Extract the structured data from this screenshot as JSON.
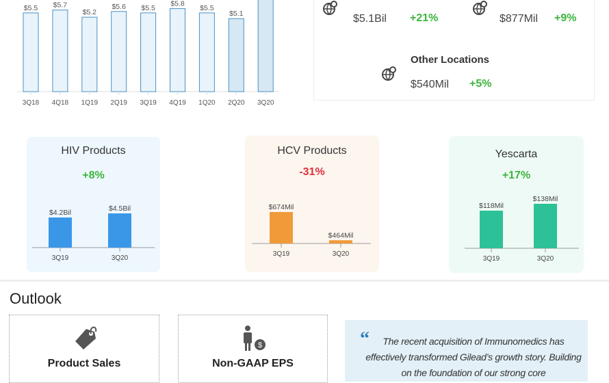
{
  "chart_data": [
    {
      "type": "bar",
      "categories": [
        "3Q18",
        "4Q18",
        "1Q19",
        "2Q19",
        "3Q19",
        "4Q19",
        "1Q20",
        "2Q20",
        "3Q20"
      ],
      "values": [
        5.5,
        5.7,
        5.2,
        5.6,
        5.5,
        5.8,
        5.5,
        5.1,
        null
      ],
      "labels": [
        "$5.5",
        "$5.7",
        "$5.2",
        "$5.6",
        "$5.5",
        "$5.8",
        "$5.5",
        "$5.1",
        ""
      ],
      "ylim": [
        0,
        6.4
      ],
      "colors": {
        "fill": "#e8f3fb",
        "stroke": "#4a90c2",
        "highlight": "#d6e8f4"
      }
    },
    {
      "type": "bar",
      "title": "HIV  Products",
      "change": "+8%",
      "change_color": "#3cb53c",
      "categories": [
        "3Q19",
        "3Q20"
      ],
      "values": [
        4.2,
        4.5
      ],
      "labels": [
        "$4.2Bil",
        "$4.5Bil"
      ],
      "ylim": [
        2,
        5
      ],
      "color": "#3a97e8",
      "bg": "#eef7fe"
    },
    {
      "type": "bar",
      "title": "HCV Products",
      "change": "-31%",
      "change_color": "#e0303a",
      "categories": [
        "3Q19",
        "3Q20"
      ],
      "values": [
        674,
        464
      ],
      "labels": [
        "$674Mil",
        "$464Mil"
      ],
      "ylim": [
        440,
        745
      ],
      "color": "#f09a3a",
      "bg": "#fdf6ef"
    },
    {
      "type": "bar",
      "title": "Yescarta",
      "change": "+17%",
      "change_color": "#3cb53c",
      "categories": [
        "3Q19",
        "3Q20"
      ],
      "values": [
        118,
        138
      ],
      "labels": [
        "$118Mil",
        "$138Mil"
      ],
      "ylim": [
        8,
        148
      ],
      "color": "#2cc196",
      "bg": "#eefaf5"
    }
  ],
  "geo": {
    "items": [
      {
        "value": "$5.1Bil",
        "change": "+21%",
        "icon": "globe-pin-icon"
      },
      {
        "value": "$877Mil",
        "change": "+9%",
        "icon": "globe-pin-icon"
      },
      {
        "title": "Other Locations",
        "value": "$540Mil",
        "change": "+5%",
        "icon": "globe-pin-icon"
      }
    ]
  },
  "outlook": {
    "heading": "Outlook",
    "boxes": [
      {
        "label": "Product Sales",
        "icon": "price-tag-icon"
      },
      {
        "label": "Non-GAAP EPS",
        "icon": "person-dollar-icon"
      }
    ],
    "quote": "The recent acquisition of Immunomedics has effectively transformed Gilead’s growth story. Building on the foundation of our strong core"
  }
}
